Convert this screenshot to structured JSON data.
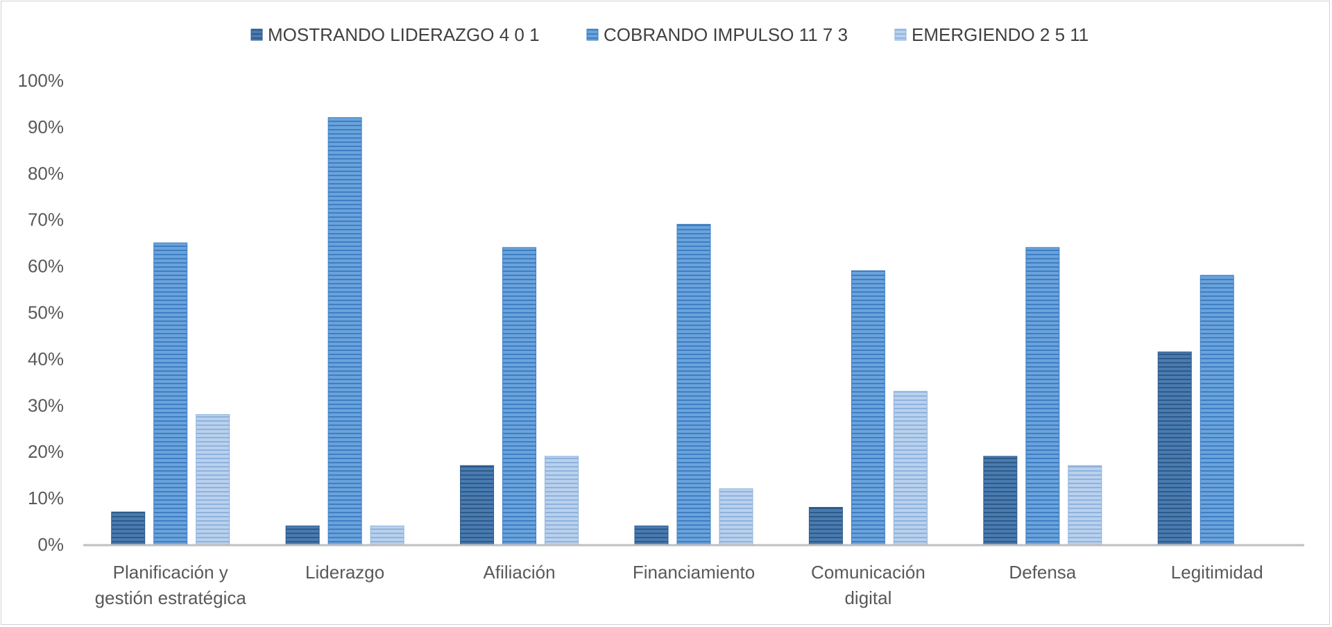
{
  "chart_data": {
    "type": "bar",
    "title": "",
    "xlabel": "",
    "ylabel": "",
    "ylim": [
      0,
      1
    ],
    "yticks": [
      "0%",
      "10%",
      "20%",
      "30%",
      "40%",
      "50%",
      "60%",
      "70%",
      "80%",
      "90%",
      "100%"
    ],
    "categories": [
      [
        "Planificación y",
        "gestión estratégica"
      ],
      [
        "Liderazgo"
      ],
      [
        "Afiliación"
      ],
      [
        "Financiamiento"
      ],
      [
        "Comunicación",
        "digital"
      ],
      [
        "Defensa"
      ],
      [
        "Legitimidad"
      ]
    ],
    "series": [
      {
        "name": "MOSTRANDO LIDERAZGO  4 0 1",
        "color": "#4a7bb0",
        "stripe": "#2e5a8a",
        "values": [
          0.07,
          0.04,
          0.17,
          0.04,
          0.08,
          0.19,
          0.415
        ]
      },
      {
        "name": "COBRANDO IMPULSO 11 7 3",
        "color": "#6aa3dc",
        "stripe": "#3f7ec2",
        "values": [
          0.65,
          0.92,
          0.64,
          0.69,
          0.59,
          0.64,
          0.58
        ]
      },
      {
        "name": "EMERGIENDO 2 5 11",
        "color": "#b9d1ee",
        "stripe": "#8fb2dc",
        "values": [
          0.28,
          0.04,
          0.19,
          0.12,
          0.33,
          0.17,
          0.0
        ]
      }
    ],
    "legend_position": "top-center",
    "grid": false
  }
}
